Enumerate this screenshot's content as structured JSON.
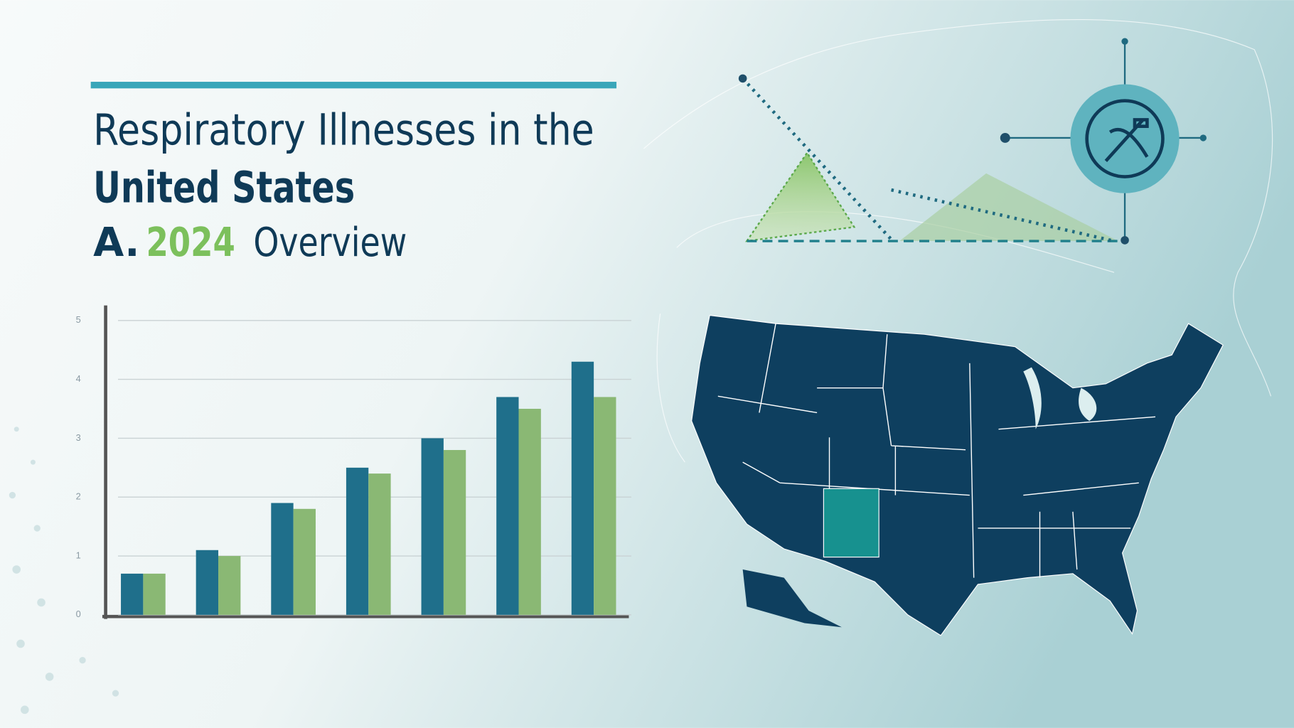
{
  "header": {
    "title_line1": "Respiratory Illnesses in the",
    "title_line2": "United States",
    "subtitle_prefix": "A.",
    "subtitle_year": "2024",
    "subtitle_suffix": "Overview"
  },
  "chart_data": {
    "type": "bar",
    "categories": [
      null,
      null,
      null,
      null,
      null,
      null,
      null
    ],
    "series": [
      {
        "color": "#1f6f8b",
        "values": [
          0.7,
          1.1,
          1.9,
          2.5,
          3.0,
          3.7,
          4.3
        ]
      },
      {
        "color": "#8ab874",
        "values": [
          0.7,
          1.0,
          1.8,
          2.4,
          2.8,
          3.5,
          3.7
        ]
      }
    ],
    "ylim": [
      0,
      5.2
    ],
    "yticks": [
      0,
      1,
      2,
      3,
      4,
      5
    ],
    "grid": true
  }
}
